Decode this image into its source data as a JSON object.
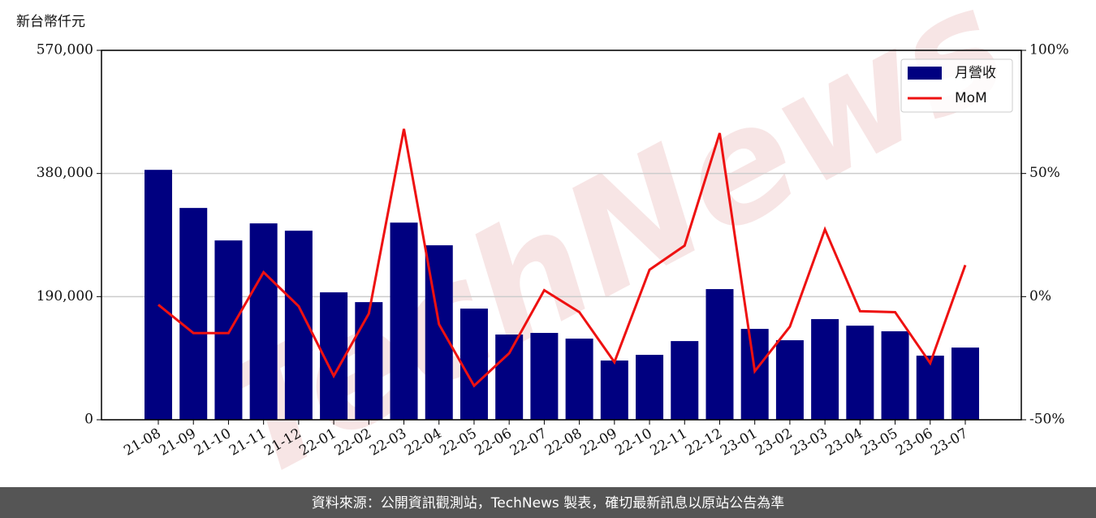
{
  "chart_data": {
    "type": "bar_line",
    "y_label": "新台幣仟元",
    "watermark": "TechNews",
    "footer": "資料來源：公開資訊觀測站，TechNews 製表，確切最新訊息以原站公告為準",
    "categories": [
      "21-08",
      "21-09",
      "21-10",
      "21-11",
      "21-12",
      "22-01",
      "22-02",
      "22-03",
      "22-04",
      "22-05",
      "22-06",
      "22-07",
      "22-08",
      "22-09",
      "22-10",
      "22-11",
      "22-12",
      "23-01",
      "23-02",
      "23-03",
      "23-04",
      "23-05",
      "23-06",
      "23-07"
    ],
    "series": [
      {
        "name": "月營收",
        "color": "#000080",
        "type": "bar",
        "values": [
          385600,
          326800,
          276700,
          303000,
          291700,
          196600,
          181500,
          304200,
          269200,
          171500,
          131500,
          134000,
          125200,
          91400,
          100200,
          121400,
          201600,
          140200,
          122700,
          155300,
          145200,
          136500,
          98900,
          111400
        ]
      },
      {
        "name": "MoM",
        "color": "#ee1111",
        "type": "line",
        "axis": "y2",
        "values": [
          -3.3,
          -14.8,
          -14.8,
          9.9,
          -3.9,
          -32.2,
          -6.9,
          68.1,
          -11.2,
          -36.2,
          -23.0,
          2.6,
          -6.3,
          -26.6,
          10.9,
          20.7,
          66.4,
          -30.3,
          -12.2,
          27.3,
          -5.9,
          -6.3,
          -27.0,
          12.8
        ]
      }
    ],
    "ylim": [
      0,
      570000
    ],
    "yticks": [
      {
        "value": 0,
        "label": "0"
      },
      {
        "value": 190000,
        "label": "190,000"
      },
      {
        "value": 380000,
        "label": "380,000"
      },
      {
        "value": 570000,
        "label": "570,000"
      }
    ],
    "y2lim": [
      -50,
      100
    ],
    "y2ticks": [
      {
        "value": -50,
        "label": "-50%"
      },
      {
        "value": 0,
        "label": "0%"
      },
      {
        "value": 50,
        "label": "50%"
      },
      {
        "value": 100,
        "label": "100%"
      }
    ],
    "grid": true,
    "legend": "upper right"
  }
}
